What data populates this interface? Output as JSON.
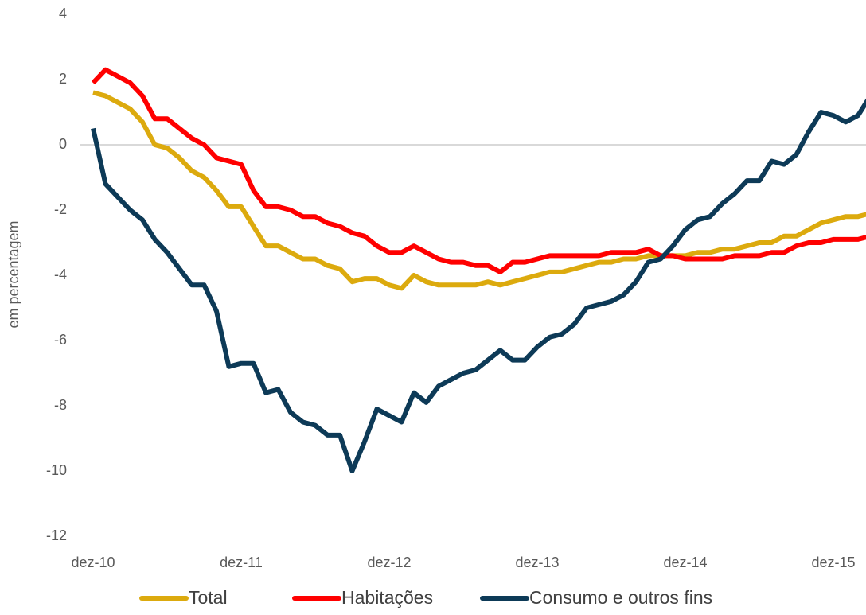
{
  "chart_data": {
    "type": "line",
    "y_label": "em percentagem",
    "categories": [
      "dez-10",
      null,
      null,
      null,
      null,
      null,
      null,
      null,
      null,
      null,
      null,
      null,
      "dez-11",
      null,
      null,
      null,
      null,
      null,
      null,
      null,
      null,
      null,
      null,
      null,
      "dez-12",
      null,
      null,
      null,
      null,
      null,
      null,
      null,
      null,
      null,
      null,
      null,
      "dez-13",
      null,
      null,
      null,
      null,
      null,
      null,
      null,
      null,
      null,
      null,
      null,
      "dez-14",
      null,
      null,
      null,
      null,
      null,
      null,
      null,
      null,
      null,
      null,
      null,
      "dez-15",
      null,
      null,
      null
    ],
    "series": [
      {
        "name": "Total",
        "color": "#dcaa0e",
        "values": [
          1.6,
          1.5,
          1.3,
          1.1,
          0.7,
          0.0,
          -0.1,
          -0.4,
          -0.8,
          -1.0,
          -1.4,
          -1.9,
          -1.9,
          -2.5,
          -3.1,
          -3.1,
          -3.3,
          -3.5,
          -3.5,
          -3.7,
          -3.8,
          -4.2,
          -4.1,
          -4.1,
          -4.3,
          -4.4,
          -4.0,
          -4.2,
          -4.3,
          -4.3,
          -4.3,
          -4.3,
          -4.2,
          -4.3,
          -4.2,
          -4.1,
          -4.0,
          -3.9,
          -3.9,
          -3.8,
          -3.7,
          -3.6,
          -3.6,
          -3.5,
          -3.5,
          -3.4,
          -3.4,
          -3.4,
          -3.4,
          -3.3,
          -3.3,
          -3.2,
          -3.2,
          -3.1,
          -3.0,
          -3.0,
          -2.8,
          -2.8,
          -2.6,
          -2.4,
          -2.3,
          -2.2,
          -2.2,
          -2.1
        ]
      },
      {
        "name": "Habitações",
        "color": "#ff0000",
        "values": [
          1.9,
          2.3,
          2.1,
          1.9,
          1.5,
          0.8,
          0.8,
          0.5,
          0.2,
          0.0,
          -0.4,
          -0.5,
          -0.6,
          -1.4,
          -1.9,
          -1.9,
          -2.0,
          -2.2,
          -2.2,
          -2.4,
          -2.5,
          -2.7,
          -2.8,
          -3.1,
          -3.3,
          -3.3,
          -3.1,
          -3.3,
          -3.5,
          -3.6,
          -3.6,
          -3.7,
          -3.7,
          -3.9,
          -3.6,
          -3.6,
          -3.5,
          -3.4,
          -3.4,
          -3.4,
          -3.4,
          -3.4,
          -3.3,
          -3.3,
          -3.3,
          -3.2,
          -3.4,
          -3.4,
          -3.5,
          -3.5,
          -3.5,
          -3.5,
          -3.4,
          -3.4,
          -3.4,
          -3.3,
          -3.3,
          -3.1,
          -3.0,
          -3.0,
          -2.9,
          -2.9,
          -2.9,
          -2.8
        ]
      },
      {
        "name": "Consumo e outros fins",
        "color": "#0d3a57",
        "values": [
          0.5,
          -1.2,
          -1.6,
          -2.0,
          -2.3,
          -2.9,
          -3.3,
          -3.8,
          -4.3,
          -4.3,
          -5.1,
          -6.8,
          -6.7,
          -6.7,
          -7.6,
          -7.5,
          -8.2,
          -8.5,
          -8.6,
          -8.9,
          -8.9,
          -10.0,
          -9.1,
          -8.1,
          -8.3,
          -8.5,
          -7.6,
          -7.9,
          -7.4,
          -7.2,
          -7.0,
          -6.9,
          -6.6,
          -6.3,
          -6.6,
          -6.6,
          -6.2,
          -5.9,
          -5.8,
          -5.5,
          -5.0,
          -4.9,
          -4.8,
          -4.6,
          -4.2,
          -3.6,
          -3.5,
          -3.1,
          -2.6,
          -2.3,
          -2.2,
          -1.8,
          -1.5,
          -1.1,
          -1.1,
          -0.5,
          -0.6,
          -0.3,
          0.4,
          1.0,
          0.9,
          0.7,
          0.9,
          1.5
        ]
      }
    ],
    "ylim": [
      -12,
      4
    ],
    "yticks": [
      -12,
      -10,
      -8,
      -6,
      -4,
      -2,
      0,
      2,
      4
    ],
    "grid": false,
    "legend": "bottom"
  }
}
